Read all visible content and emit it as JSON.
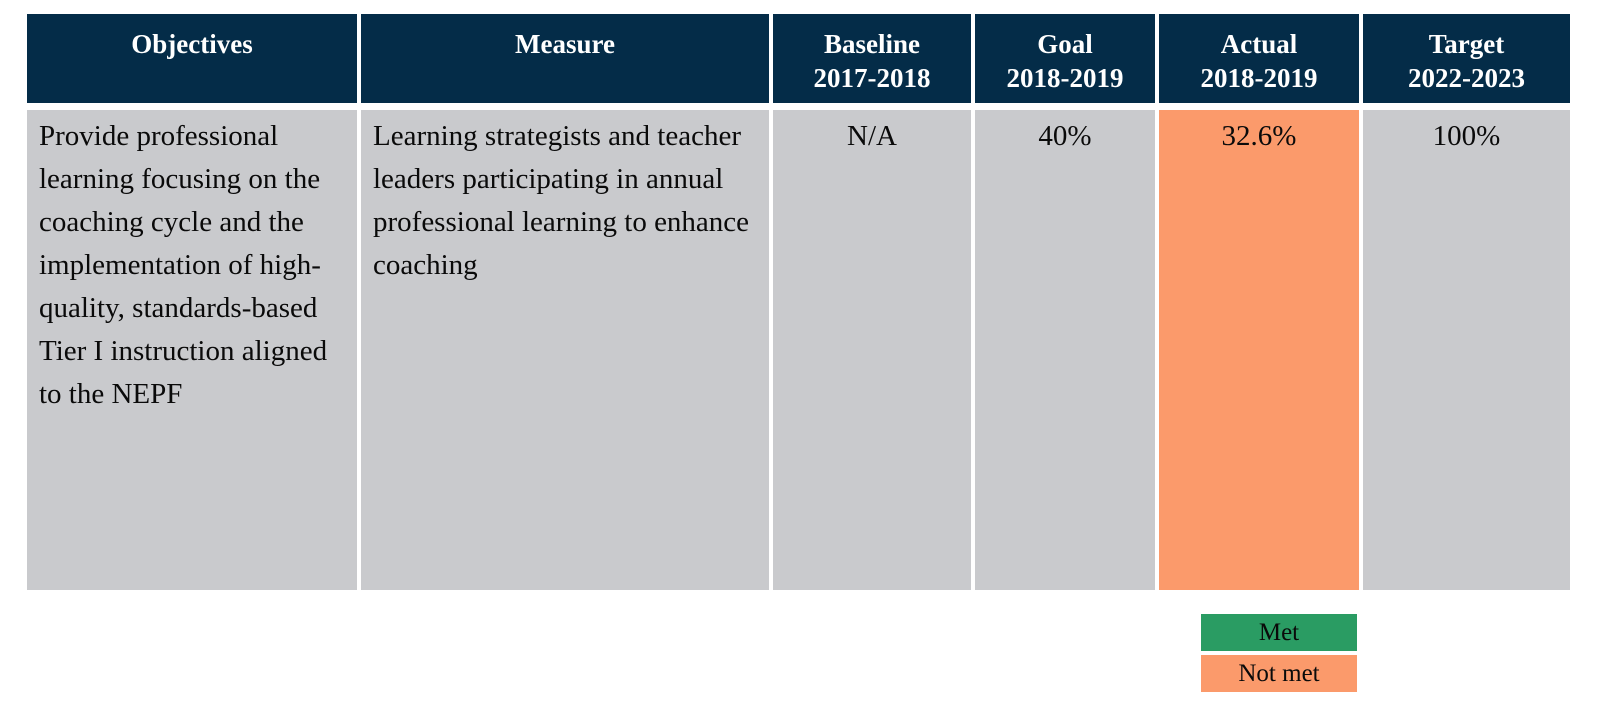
{
  "table": {
    "columns": [
      {
        "label": "Objectives"
      },
      {
        "label": "Measure"
      },
      {
        "label": "Baseline",
        "sublabel": "2017-2018"
      },
      {
        "label": "Goal",
        "sublabel": "2018-2019"
      },
      {
        "label": "Actual",
        "sublabel": "2018-2019"
      },
      {
        "label": "Target",
        "sublabel": "2022-2023"
      }
    ],
    "rows": [
      {
        "objective": "Provide professional learning focusing on the coaching cycle and the implementation of high-quality, standards-based Tier I instruction aligned to the NEPF",
        "measure": "Learning strategists and teacher leaders participating in annual professional learning to enhance coaching",
        "baseline": "N/A",
        "goal": "40%",
        "actual": "32.6%",
        "actual_status": "not-met",
        "target": "100%"
      }
    ]
  },
  "legend": {
    "met_label": "Met",
    "not_met_label": "Not met"
  },
  "colors": {
    "header_bg": "#042C48",
    "header_text": "#ffffff",
    "cell_bg": "#C9CACD",
    "met": "#2A9C63",
    "not_met": "#FB9A6B"
  }
}
